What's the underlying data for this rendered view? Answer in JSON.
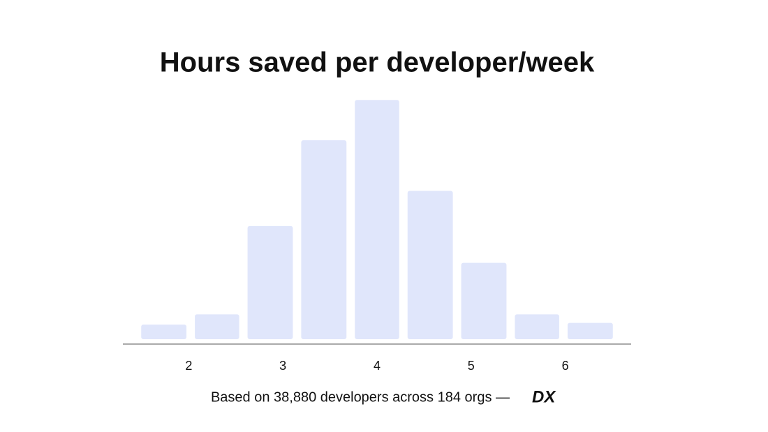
{
  "chart_data": {
    "type": "histogram",
    "title": "Hours saved per developer/week",
    "bins": [
      1.45,
      2.02,
      2.58,
      3.15,
      3.72,
      4.28,
      4.85,
      5.42,
      5.98,
      6.55
    ],
    "values": [
      1.7,
      2.9,
      13.2,
      23.2,
      27.9,
      17.3,
      8.9,
      2.9,
      1.9
    ],
    "color": "#e0e6fb",
    "xlim": [
      1.3,
      6.7
    ],
    "xticks": [
      2,
      3,
      4,
      5,
      6
    ],
    "ylim": [
      0,
      28
    ],
    "footnote": "Based on 38,880 developers across 184 orgs —",
    "brand": "DX"
  }
}
